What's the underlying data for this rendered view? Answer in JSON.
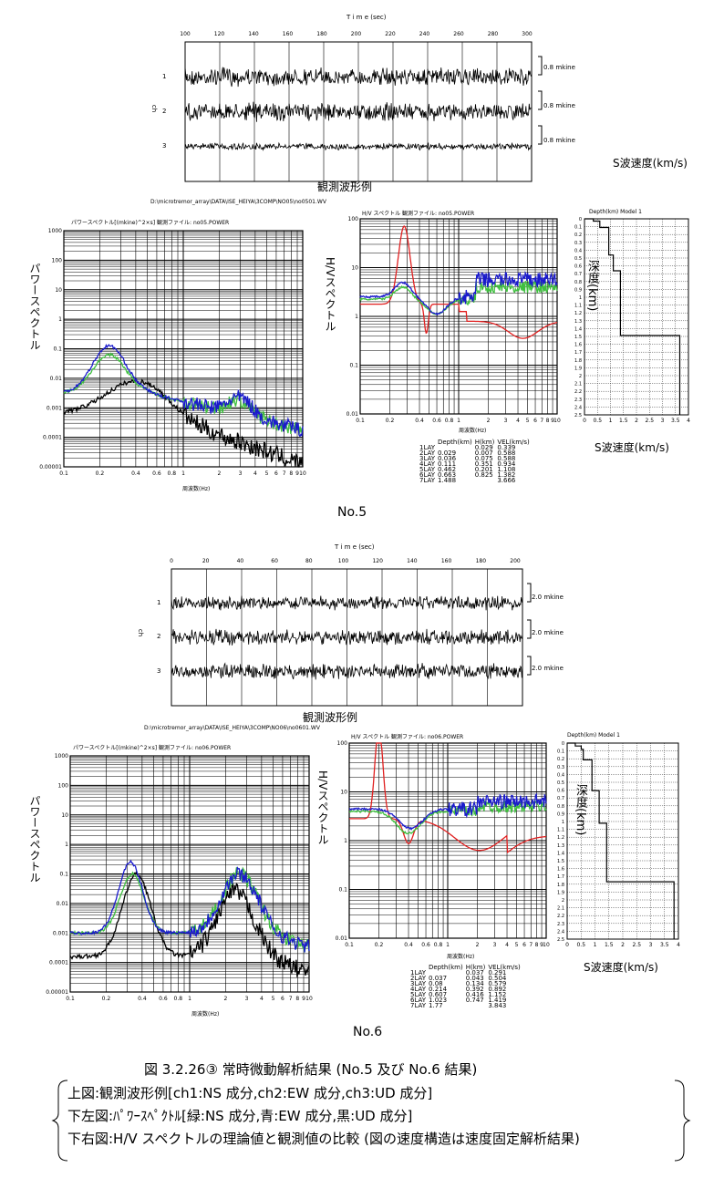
{
  "no5": {
    "wave_time_label": "T i m e (sec)",
    "wave_ticks": [
      "100",
      "120",
      "140",
      "160",
      "180",
      "200",
      "220",
      "240",
      "260",
      "280",
      "300"
    ],
    "wave_ylabel": "ch",
    "wave_channels": [
      "1",
      "2",
      "3"
    ],
    "wave_scales": [
      "0.8  mkine",
      "0.8  mkine",
      "0.8  mkine"
    ],
    "wave_title": "観測波形例",
    "path": "D:\\microtremor_array\\DATA\\ISE_HEIYA\\3COMP\\NO05\\no0501.WV",
    "spectrum_header": "パワースペクトル[(mkine)^2×s]  観測ファイル:  no05.POWER",
    "spectrum_ylabel": "パワースペクトル",
    "spectrum_yticks": [
      "1000",
      "100",
      "10",
      "1",
      "0.1",
      "0.01",
      "0.001",
      "0.0001",
      "0.00001"
    ],
    "spectrum_xticks": [
      "0.1",
      "0.2",
      "0.4",
      "0.6",
      "0.8",
      "1",
      "2",
      "3",
      "4",
      "5",
      "6",
      "7",
      "8",
      "9",
      "10"
    ],
    "spectrum_xlabel": "周波数(Hz)",
    "hv_header": "H/V  スペクトル  観測ファイル:  no05.POWER",
    "hv_ylabel": "H/Vスペクトル",
    "hv_yticks": [
      "100",
      "10",
      "1",
      "0.1",
      "0.01"
    ],
    "hv_xticks": [
      "0.1",
      "0.2",
      "0.4",
      "0.6",
      "0.8",
      "1",
      "2",
      "3",
      "4",
      "5",
      "6",
      "7",
      "8",
      "9",
      "10"
    ],
    "hv_xlabel": "周波数(Hz)",
    "model_header": "Depth(km)     Model 1",
    "depth_ticks": [
      "0",
      "0.1",
      "0.2",
      "0.3",
      "0.4",
      "0.5",
      "0.6",
      "0.7",
      "0.8",
      "0.9",
      "1",
      "1.1",
      "1.2",
      "1.3",
      "1.4",
      "1.5",
      "1.6",
      "1.7",
      "1.8",
      "1.9",
      "2",
      "2.1",
      "2.2",
      "2.3",
      "2.4",
      "2.5"
    ],
    "vel_ticks": [
      "0",
      "0.5",
      "1",
      "1.5",
      "2",
      "2.5",
      "3",
      "3.5",
      "4"
    ],
    "depth_label": "深度(km)",
    "vel_label": "S波速度(km/s)",
    "vel_label_top": "S波速度(km/s)",
    "layer_headers": [
      "",
      "Depth(km)",
      "H(km)",
      "VEL(km/s)"
    ],
    "layers": [
      [
        "1LAY",
        "",
        "0.029",
        "0.339"
      ],
      [
        "2LAY",
        "0.029",
        "0.007",
        "0.588"
      ],
      [
        "3LAY",
        "0.036",
        "0.075",
        "0.588"
      ],
      [
        "4LAY",
        "0.111",
        "0.351",
        "0.934"
      ],
      [
        "5LAY",
        "0.462",
        "0.201",
        "1.108"
      ],
      [
        "6LAY",
        "0.663",
        "0.825",
        "1.382"
      ],
      [
        "7LAY",
        "1.488",
        "",
        "3.666"
      ]
    ],
    "label": "No.5"
  },
  "no6": {
    "wave_time_label": "T i m e (sec)",
    "wave_ticks": [
      "0",
      "20",
      "40",
      "60",
      "80",
      "100",
      "120",
      "140",
      "160",
      "180",
      "200"
    ],
    "wave_ylabel": "ch",
    "wave_channels": [
      "1",
      "2",
      "3"
    ],
    "wave_scales": [
      "2.0  mkine",
      "2.0  mkine",
      "2.0  mkine"
    ],
    "wave_title": "観測波形例",
    "path": "D:\\microtremor_array\\DATA\\ISE_HEIYA\\3COMP\\NO06\\no0601.WV",
    "spectrum_header": "パワースペクトル[(mkine)^2×s]  観測ファイル:  no06.POWER",
    "spectrum_ylabel": "パワースペクトル",
    "spectrum_yticks": [
      "1000",
      "100",
      "10",
      "1",
      "0.1",
      "0.01",
      "0.001",
      "0.0001",
      "0.00001"
    ],
    "spectrum_xticks": [
      "0.1",
      "0.2",
      "0.4",
      "0.6",
      "0.8",
      "1",
      "2",
      "3",
      "4",
      "5",
      "6",
      "7",
      "8",
      "9",
      "10"
    ],
    "spectrum_xlabel": "周波数(Hz)",
    "hv_header": "H/V  スペクトル  観測ファイル:  no06.POWER",
    "hv_ylabel": "H/Vスペクトル",
    "hv_yticks": [
      "100",
      "10",
      "1",
      "0.1",
      "0.01"
    ],
    "hv_xticks": [
      "0.1",
      "0.2",
      "0.4",
      "0.6",
      "0.8",
      "1",
      "2",
      "3",
      "4",
      "5",
      "6",
      "7",
      "8",
      "9",
      "10"
    ],
    "hv_xlabel": "周波数(Hz)",
    "model_header": "Depth(km)     Model 1",
    "depth_ticks": [
      "0",
      "0.1",
      "0.2",
      "0.3",
      "0.4",
      "0.5",
      "0.6",
      "0.7",
      "0.8",
      "0.9",
      "1",
      "1.1",
      "1.2",
      "1.3",
      "1.4",
      "1.5",
      "1.6",
      "1.7",
      "1.8",
      "1.9",
      "2",
      "2.1",
      "2.2",
      "2.3",
      "2.4",
      "2.5"
    ],
    "vel_ticks": [
      "0",
      "0.5",
      "1",
      "1.5",
      "2",
      "2.5",
      "3",
      "3.5",
      "4"
    ],
    "depth_label": "深度(km)",
    "vel_label": "S波速度(km/s)",
    "layer_headers": [
      "",
      "Depth(km)",
      "H(km)",
      "VEL(km/s)"
    ],
    "layers": [
      [
        "1LAY",
        "",
        "0.037",
        "0.291"
      ],
      [
        "2LAY",
        "0.037",
        "0.043",
        "0.504"
      ],
      [
        "3LAY",
        "0.08",
        "0.134",
        "0.579"
      ],
      [
        "4LAY",
        "0.214",
        "0.392",
        "0.892"
      ],
      [
        "5LAY",
        "0.607",
        "0.416",
        "1.152"
      ],
      [
        "6LAY",
        "1.023",
        "0.747",
        "1.419"
      ],
      [
        "7LAY",
        "1.77",
        "",
        "3.843"
      ]
    ],
    "label": "No.6"
  },
  "caption": {
    "title": "図 3.2.26③  常時微動解析結果 (No.5 及び No.6 結果)",
    "lines": [
      "上図:観測波形例[ch1:NS 成分,ch2:EW 成分,ch3:UD 成分]",
      "下左図:ﾊﾟﾜｰｽﾍﾟｸﾄﾙ[緑:NS 成分,青:EW 成分,黒:UD 成分]",
      "下右図:H/V スペクトルの理論値と観測値の比較 (図の速度構造は速度固定解析結果)"
    ]
  },
  "colors": {
    "ns": "#3fbf3f",
    "ew": "#1a1acc",
    "ud": "#000000",
    "theory": "#e02020"
  }
}
